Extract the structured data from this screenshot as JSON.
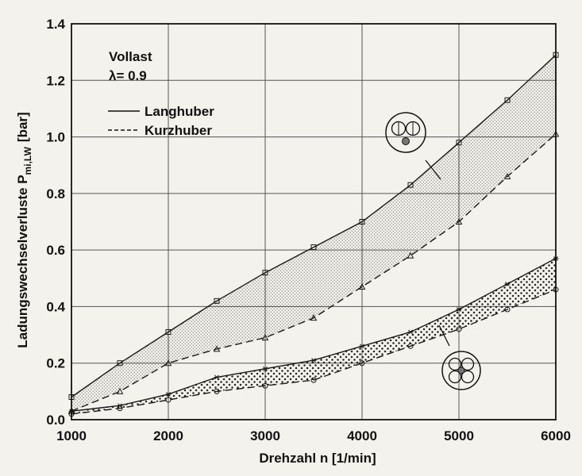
{
  "chart_data": {
    "type": "line",
    "xlabel": "Drehzahl n [1/min]",
    "ylabel_main": "Ladungswechselverluste P",
    "ylabel_sub": "mi,LW",
    "ylabel_unit": "[bar]",
    "xlim": [
      1000,
      6000
    ],
    "ylim": [
      0,
      1.4
    ],
    "x_ticks": [
      "1000",
      "2000",
      "3000",
      "4000",
      "5000",
      "6000"
    ],
    "y_ticks": [
      "0.0",
      "0.2",
      "0.4",
      "0.6",
      "0.8",
      "1.0",
      "1.2",
      "1.4"
    ],
    "grid": true,
    "annotation": {
      "line1": "Vollast",
      "line2": "λ= 0.9"
    },
    "legend": {
      "placement": "top-left",
      "solid_label": "Langhuber",
      "dashed_label": "Kurzhuber"
    },
    "x": [
      1000,
      1500,
      2000,
      2500,
      3000,
      3500,
      4000,
      4500,
      5000,
      5500,
      6000
    ],
    "groups": [
      {
        "engine": "upper",
        "series": [
          {
            "name": "Langhuber",
            "style": "solid",
            "marker": "square",
            "values": [
              0.08,
              0.2,
              0.31,
              0.42,
              0.52,
              0.61,
              0.7,
              0.83,
              0.98,
              1.13,
              1.29
            ]
          },
          {
            "name": "Kurzhuber",
            "style": "dashed",
            "marker": "triangle",
            "values": [
              0.03,
              0.1,
              0.2,
              0.25,
              0.29,
              0.36,
              0.47,
              0.58,
              0.7,
              0.86,
              1.01
            ]
          }
        ]
      },
      {
        "engine": "lower",
        "series": [
          {
            "name": "Langhuber",
            "style": "solid",
            "marker": "star",
            "values": [
              0.03,
              0.05,
              0.09,
              0.15,
              0.18,
              0.21,
              0.26,
              0.31,
              0.39,
              0.48,
              0.57
            ]
          },
          {
            "name": "Kurzhuber",
            "style": "dashed",
            "marker": "circle",
            "values": [
              0.02,
              0.04,
              0.07,
              0.1,
              0.12,
              0.14,
              0.2,
              0.26,
              0.32,
              0.39,
              0.46
            ]
          }
        ]
      }
    ],
    "colors": {
      "line": "#1a1a1a",
      "grid": "#555555",
      "background": "#f4f2ec",
      "fill_dots": "#333333"
    }
  }
}
